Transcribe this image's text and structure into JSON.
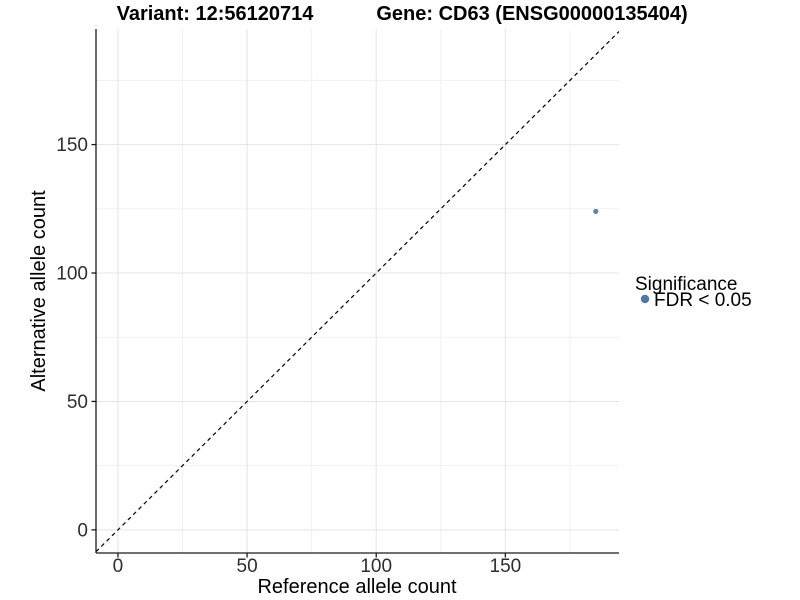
{
  "chart_data": {
    "type": "scatter",
    "titles": {
      "variant": "Variant: 12:56120714",
      "gene": "Gene: CD63 (ENSG00000135404)"
    },
    "xlabel": "Reference allele count",
    "ylabel": "Alternative allele count",
    "x_ticks": [
      0,
      50,
      100,
      150
    ],
    "y_ticks": [
      0,
      50,
      100,
      150
    ],
    "x_minor_ticks": [
      25,
      75,
      125,
      175
    ],
    "y_minor_ticks": [
      25,
      75,
      125,
      175
    ],
    "xlim": [
      -8.5,
      194
    ],
    "ylim": [
      -9,
      195
    ],
    "grid": {
      "major": true,
      "minor": true,
      "major_color": "#e4e4e4",
      "minor_color": "#f1f1f1"
    },
    "identity_line": {
      "slope": 1,
      "intercept": 0,
      "style": "dashed",
      "color": "#000000"
    },
    "series": [
      {
        "name": "FDR < 0.05",
        "color": "#4E79A7",
        "points": [
          {
            "x": 185,
            "y": 124
          }
        ]
      }
    ],
    "legend": {
      "position": "right",
      "title": "Significance",
      "entries": [
        {
          "label": "FDR < 0.05",
          "color": "#4E79A7"
        }
      ]
    },
    "axis_color": "#1a1a1a"
  }
}
